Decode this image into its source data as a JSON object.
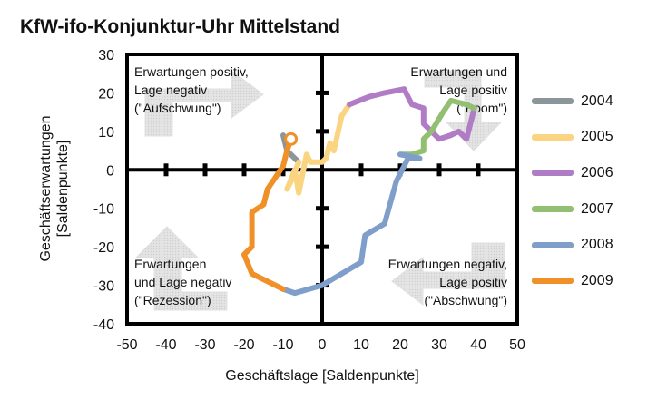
{
  "chart_data": {
    "type": "line",
    "title": "KfW-ifo-Konjunktur-Uhr Mittelstand",
    "xlabel": "Geschäftslage [Saldenpunkte]",
    "ylabel": "Geschäftserwartungen [Saldenpunkte]",
    "xlim": [
      -50,
      50
    ],
    "ylim": [
      -40,
      30
    ],
    "xticks": [
      -50,
      -40,
      -30,
      -20,
      -10,
      0,
      10,
      20,
      30,
      40,
      50
    ],
    "yticks": [
      -40,
      -30,
      -20,
      -10,
      0,
      10,
      20,
      30
    ],
    "grid": false,
    "legend_position": "right",
    "quadrant_labels": {
      "top_left": [
        "Erwartungen positiv,",
        "Lage negativ",
        "(\"Aufschwung\")"
      ],
      "top_right": [
        "Erwartungen und",
        "Lage positiv",
        "(\"Boom\")"
      ],
      "bottom_left": [
        "Erwartungen",
        "und Lage negativ",
        "(\"Rezession\")"
      ],
      "bottom_right": [
        "Erwartungen negativ,",
        "Lage positiv",
        "(\"Abschwung\")"
      ]
    },
    "series": [
      {
        "name": "2004",
        "color": "#8c9599",
        "points": [
          [
            -10,
            9
          ],
          [
            -9,
            5
          ],
          [
            -7,
            3
          ],
          [
            -6,
            2
          ]
        ]
      },
      {
        "name": "2005",
        "color": "#fad480",
        "points": [
          [
            -6,
            2
          ],
          [
            -8,
            -3
          ],
          [
            -9,
            -5
          ],
          [
            -7,
            0
          ],
          [
            -6,
            -6
          ],
          [
            -5,
            -1
          ],
          [
            -4,
            4
          ],
          [
            -3,
            2
          ],
          [
            0,
            2
          ],
          [
            1,
            3
          ],
          [
            2,
            7
          ],
          [
            3,
            5
          ],
          [
            5,
            14
          ],
          [
            7,
            17
          ]
        ]
      },
      {
        "name": "2006",
        "color": "#b07cc6",
        "points": [
          [
            7,
            17
          ],
          [
            12,
            19
          ],
          [
            16,
            20
          ],
          [
            21,
            21
          ],
          [
            23,
            17
          ],
          [
            26,
            16
          ],
          [
            26,
            12
          ],
          [
            28,
            10
          ],
          [
            30,
            8
          ],
          [
            33,
            9
          ],
          [
            35,
            10
          ],
          [
            37,
            8
          ],
          [
            39,
            16
          ]
        ]
      },
      {
        "name": "2007",
        "color": "#93bf72",
        "points": [
          [
            39,
            16
          ],
          [
            37,
            17
          ],
          [
            33,
            18
          ],
          [
            31,
            15
          ],
          [
            28,
            10
          ],
          [
            26,
            8
          ],
          [
            26,
            5
          ],
          [
            23,
            4
          ],
          [
            20,
            4
          ]
        ]
      },
      {
        "name": "2008",
        "color": "#7f9fca",
        "points": [
          [
            20,
            4
          ],
          [
            25,
            3
          ],
          [
            22,
            3
          ],
          [
            19,
            -3
          ],
          [
            16,
            -14
          ],
          [
            11,
            -17
          ],
          [
            10,
            -24
          ],
          [
            5,
            -27
          ],
          [
            0,
            -30
          ],
          [
            -7,
            -32
          ],
          [
            -10,
            -31
          ]
        ]
      },
      {
        "name": "2009",
        "color": "#ef9128",
        "points": [
          [
            -10,
            -31
          ],
          [
            -14,
            -29
          ],
          [
            -18,
            -27
          ],
          [
            -20,
            -22
          ],
          [
            -18,
            -20
          ],
          [
            -18,
            -11
          ],
          [
            -15,
            -9
          ],
          [
            -14,
            -5
          ],
          [
            -12,
            -2
          ],
          [
            -10,
            1
          ],
          [
            -9,
            5
          ],
          [
            -8,
            8
          ]
        ],
        "end_marker": "open-circle"
      }
    ]
  }
}
